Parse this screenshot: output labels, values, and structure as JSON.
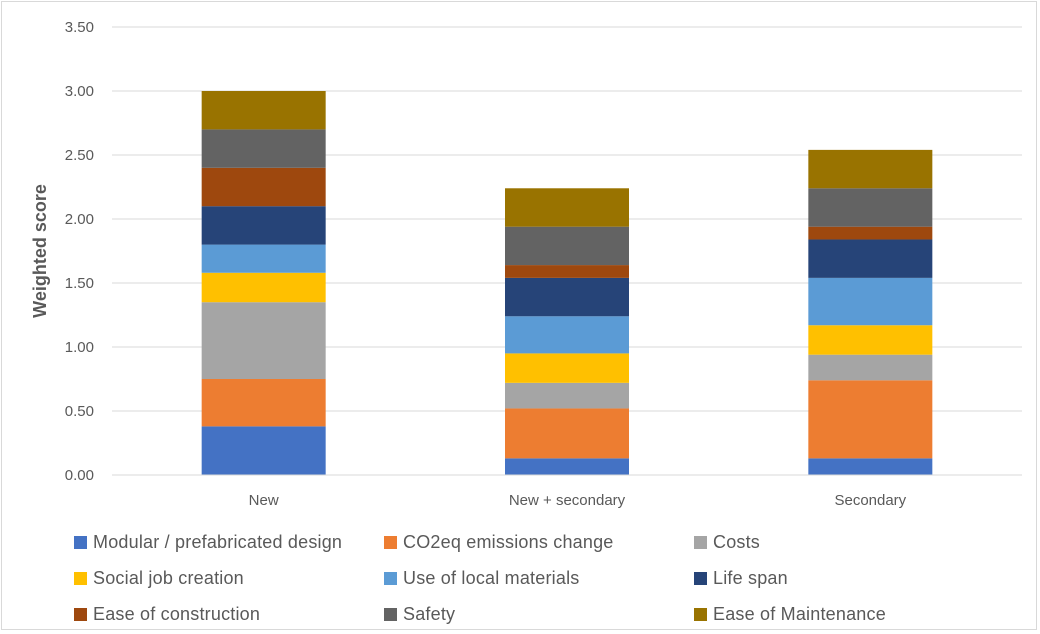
{
  "chart_data": {
    "type": "bar",
    "stacked": true,
    "title": "",
    "xlabel": "",
    "ylabel": "Weighted score",
    "ylim": [
      0,
      3.5
    ],
    "yticks": [
      "0.00",
      "0.50",
      "1.00",
      "1.50",
      "2.00",
      "2.50",
      "3.00",
      "3.50"
    ],
    "grid": true,
    "legend_position": "bottom",
    "categories": [
      "New",
      "New + secondary",
      "Secondary"
    ],
    "series": [
      {
        "name": "Modular / prefabricated design",
        "color": "#4472c4",
        "values": [
          0.38,
          0.13,
          0.13
        ]
      },
      {
        "name": "CO2eq emissions change",
        "color": "#ed7d31",
        "values": [
          0.37,
          0.39,
          0.61
        ]
      },
      {
        "name": "Costs",
        "color": "#a5a5a5",
        "values": [
          0.6,
          0.2,
          0.2
        ]
      },
      {
        "name": "Social job creation",
        "color": "#ffc000",
        "values": [
          0.23,
          0.23,
          0.23
        ]
      },
      {
        "name": "Use of local materials",
        "color": "#5b9bd5",
        "values": [
          0.22,
          0.29,
          0.37
        ]
      },
      {
        "name": "Life span",
        "color": "#264478",
        "values": [
          0.3,
          0.3,
          0.3
        ]
      },
      {
        "name": "Ease of construction",
        "color": "#9e480e",
        "values": [
          0.3,
          0.1,
          0.1
        ]
      },
      {
        "name": "Safety",
        "color": "#636363",
        "values": [
          0.3,
          0.3,
          0.3
        ]
      },
      {
        "name": "Ease of Maintenance",
        "color": "#997300",
        "values": [
          0.3,
          0.3,
          0.3
        ]
      }
    ]
  }
}
